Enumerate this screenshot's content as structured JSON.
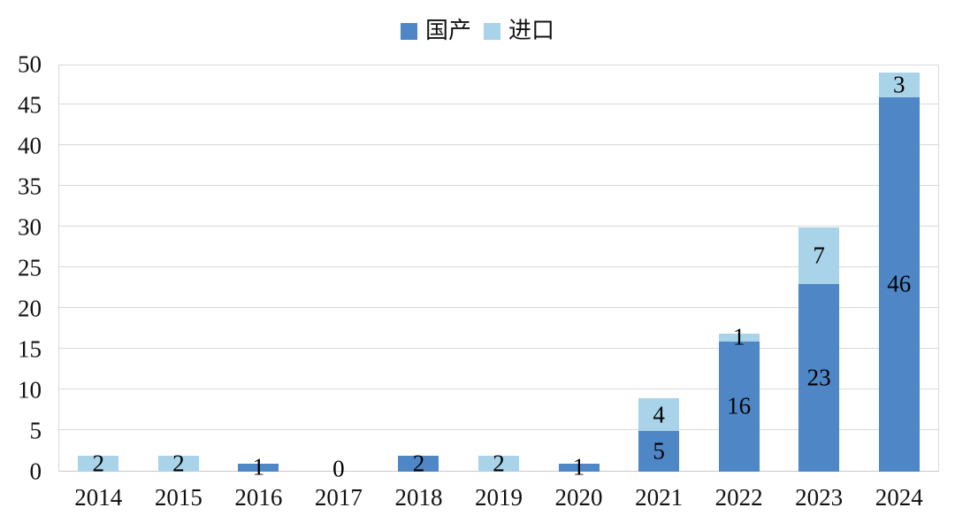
{
  "legend": {
    "items": [
      {
        "id": "domestic",
        "label": "国产",
        "color": "#4E86C6"
      },
      {
        "id": "imported",
        "label": "进口",
        "color": "#A8D3E8"
      }
    ]
  },
  "chart_data": {
    "type": "bar",
    "stacked": true,
    "title": "",
    "categories": [
      "2014",
      "2015",
      "2016",
      "2017",
      "2018",
      "2019",
      "2020",
      "2021",
      "2022",
      "2023",
      "2024"
    ],
    "series": [
      {
        "id": "domestic",
        "name": "国产",
        "color": "#4E86C6",
        "values": [
          0,
          0,
          1,
          0,
          2,
          0,
          1,
          5,
          16,
          23,
          46
        ]
      },
      {
        "id": "imported",
        "name": "进口",
        "color": "#A8D3E8",
        "values": [
          2,
          2,
          0,
          0,
          0,
          2,
          0,
          4,
          1,
          7,
          3
        ]
      }
    ],
    "totals": [
      2,
      2,
      1,
      0,
      2,
      2,
      1,
      9,
      17,
      30,
      49
    ],
    "data_labels": [
      "2",
      "2",
      "1",
      "0",
      "2",
      "2",
      "1",
      "5/4",
      "16/1",
      "23/7",
      "46/3"
    ],
    "ylim": [
      0,
      50
    ],
    "ytick_step": 5,
    "ytick_labels": [
      "0",
      "5",
      "10",
      "15",
      "20",
      "25",
      "30",
      "35",
      "40",
      "45",
      "50"
    ],
    "xlabel": "",
    "ylabel": "",
    "grid": true,
    "legend_position": "top-center",
    "data_label_position": "center",
    "zero_total_label": "0"
  },
  "colors": {
    "background": "#FFFFFF",
    "grid": "#D9D9D9",
    "plot_border": "#D9D9D9",
    "axis_text": "#111111",
    "data_label_text": "#000000"
  }
}
